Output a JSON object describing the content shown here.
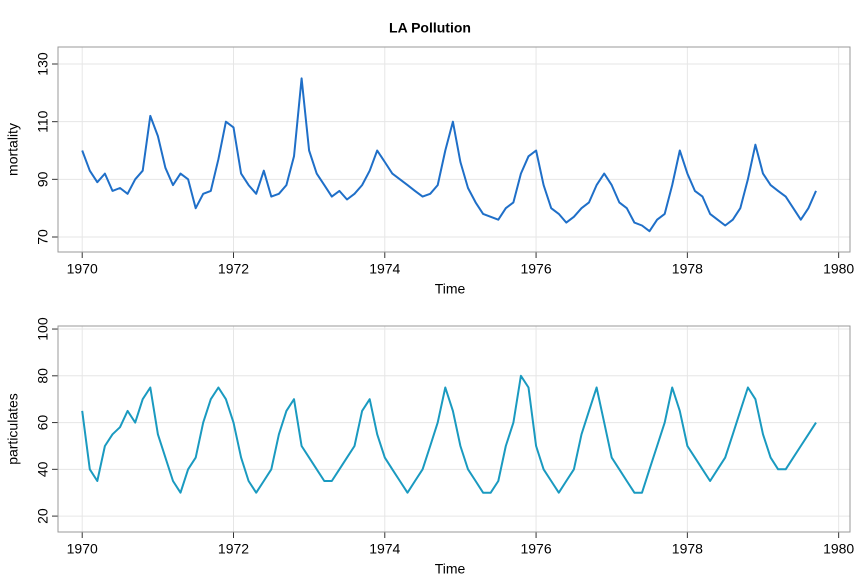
{
  "chart_data": [
    {
      "type": "line",
      "title": "LA Pollution",
      "xlabel": "Time",
      "ylabel": "mortality",
      "x": [
        1970,
        1970.1,
        1970.2,
        1970.3,
        1970.4,
        1970.5,
        1970.6,
        1970.7,
        1970.8,
        1970.9,
        1971,
        1971.1,
        1971.2,
        1971.3,
        1971.4,
        1971.5,
        1971.6,
        1971.7,
        1971.8,
        1971.9,
        1972,
        1972.1,
        1972.2,
        1972.3,
        1972.4,
        1972.5,
        1972.6,
        1972.7,
        1972.8,
        1972.9,
        1973,
        1973.1,
        1973.2,
        1973.3,
        1973.4,
        1973.5,
        1973.6,
        1973.7,
        1973.8,
        1973.9,
        1974,
        1974.1,
        1974.2,
        1974.3,
        1974.4,
        1974.5,
        1974.6,
        1974.7,
        1974.8,
        1974.9,
        1975,
        1975.1,
        1975.2,
        1975.3,
        1975.4,
        1975.5,
        1975.6,
        1975.7,
        1975.8,
        1975.9,
        1976,
        1976.1,
        1976.2,
        1976.3,
        1976.4,
        1976.5,
        1976.6,
        1976.7,
        1976.8,
        1976.9,
        1977,
        1977.1,
        1977.2,
        1977.3,
        1977.4,
        1977.5,
        1977.6,
        1977.7,
        1977.8,
        1977.9,
        1978,
        1978.1,
        1978.2,
        1978.3,
        1978.4,
        1978.5,
        1978.6,
        1978.7,
        1978.8,
        1978.9,
        1979,
        1979.1,
        1979.2,
        1979.3,
        1979.4,
        1979.5,
        1979.6,
        1979.7
      ],
      "series": [
        {
          "name": "mortality",
          "color": "#1f6fc8",
          "values": [
            100,
            93,
            89,
            92,
            86,
            87,
            85,
            90,
            93,
            112,
            105,
            94,
            88,
            92,
            90,
            80,
            85,
            86,
            97,
            110,
            108,
            92,
            88,
            85,
            93,
            84,
            85,
            88,
            98,
            125,
            100,
            92,
            88,
            84,
            86,
            83,
            85,
            88,
            93,
            100,
            96,
            92,
            90,
            88,
            86,
            84,
            85,
            88,
            100,
            110,
            96,
            87,
            82,
            78,
            77,
            76,
            80,
            82,
            92,
            98,
            100,
            88,
            80,
            78,
            75,
            77,
            80,
            82,
            88,
            92,
            88,
            82,
            80,
            75,
            74,
            72,
            76,
            78,
            88,
            100,
            92,
            86,
            84,
            78,
            76,
            74,
            76,
            80,
            90,
            102,
            92,
            88,
            86,
            84,
            80,
            76,
            80,
            86
          ]
        }
      ],
      "xlim": [
        1969.68,
        1980.15
      ],
      "xticks": [
        1970,
        1972,
        1974,
        1976,
        1978,
        1980
      ],
      "ylim": [
        64.8,
        135.9
      ],
      "yticks": [
        70,
        90,
        110,
        130
      ],
      "grid": true
    },
    {
      "type": "line",
      "xlabel": "Time",
      "ylabel": "particulates",
      "x": [
        1970,
        1970.1,
        1970.2,
        1970.3,
        1970.4,
        1970.5,
        1970.6,
        1970.7,
        1970.8,
        1970.9,
        1971,
        1971.1,
        1971.2,
        1971.3,
        1971.4,
        1971.5,
        1971.6,
        1971.7,
        1971.8,
        1971.9,
        1972,
        1972.1,
        1972.2,
        1972.3,
        1972.4,
        1972.5,
        1972.6,
        1972.7,
        1972.8,
        1972.9,
        1973,
        1973.1,
        1973.2,
        1973.3,
        1973.4,
        1973.5,
        1973.6,
        1973.7,
        1973.8,
        1973.9,
        1974,
        1974.1,
        1974.2,
        1974.3,
        1974.4,
        1974.5,
        1974.6,
        1974.7,
        1974.8,
        1974.9,
        1975,
        1975.1,
        1975.2,
        1975.3,
        1975.4,
        1975.5,
        1975.6,
        1975.7,
        1975.8,
        1975.9,
        1976,
        1976.1,
        1976.2,
        1976.3,
        1976.4,
        1976.5,
        1976.6,
        1976.7,
        1976.8,
        1976.9,
        1977,
        1977.1,
        1977.2,
        1977.3,
        1977.4,
        1977.5,
        1977.6,
        1977.7,
        1977.8,
        1977.9,
        1978,
        1978.1,
        1978.2,
        1978.3,
        1978.4,
        1978.5,
        1978.6,
        1978.7,
        1978.8,
        1978.9,
        1979,
        1979.1,
        1979.2,
        1979.3,
        1979.4,
        1979.5,
        1979.6,
        1979.7
      ],
      "series": [
        {
          "name": "particulates",
          "color": "#1a9ac0",
          "values": [
            65,
            40,
            35,
            50,
            55,
            58,
            65,
            60,
            70,
            75,
            55,
            45,
            35,
            30,
            40,
            45,
            60,
            70,
            75,
            70,
            60,
            45,
            35,
            30,
            35,
            40,
            55,
            65,
            70,
            50,
            45,
            40,
            35,
            35,
            40,
            45,
            50,
            65,
            70,
            55,
            45,
            40,
            35,
            30,
            35,
            40,
            50,
            60,
            75,
            65,
            50,
            40,
            35,
            30,
            30,
            35,
            50,
            60,
            80,
            75,
            50,
            40,
            35,
            30,
            35,
            40,
            55,
            65,
            75,
            60,
            45,
            40,
            35,
            30,
            30,
            40,
            50,
            60,
            75,
            65,
            50,
            45,
            40,
            35,
            40,
            45,
            55,
            65,
            75,
            70,
            55,
            45,
            40,
            40,
            45,
            50,
            55,
            60
          ]
        }
      ],
      "xlim": [
        1969.68,
        1980.15
      ],
      "xticks": [
        1970,
        1972,
        1974,
        1976,
        1978,
        1980
      ],
      "ylim": [
        13.2,
        101.3
      ],
      "yticks": [
        20,
        40,
        60,
        80,
        100
      ],
      "grid": true
    }
  ]
}
